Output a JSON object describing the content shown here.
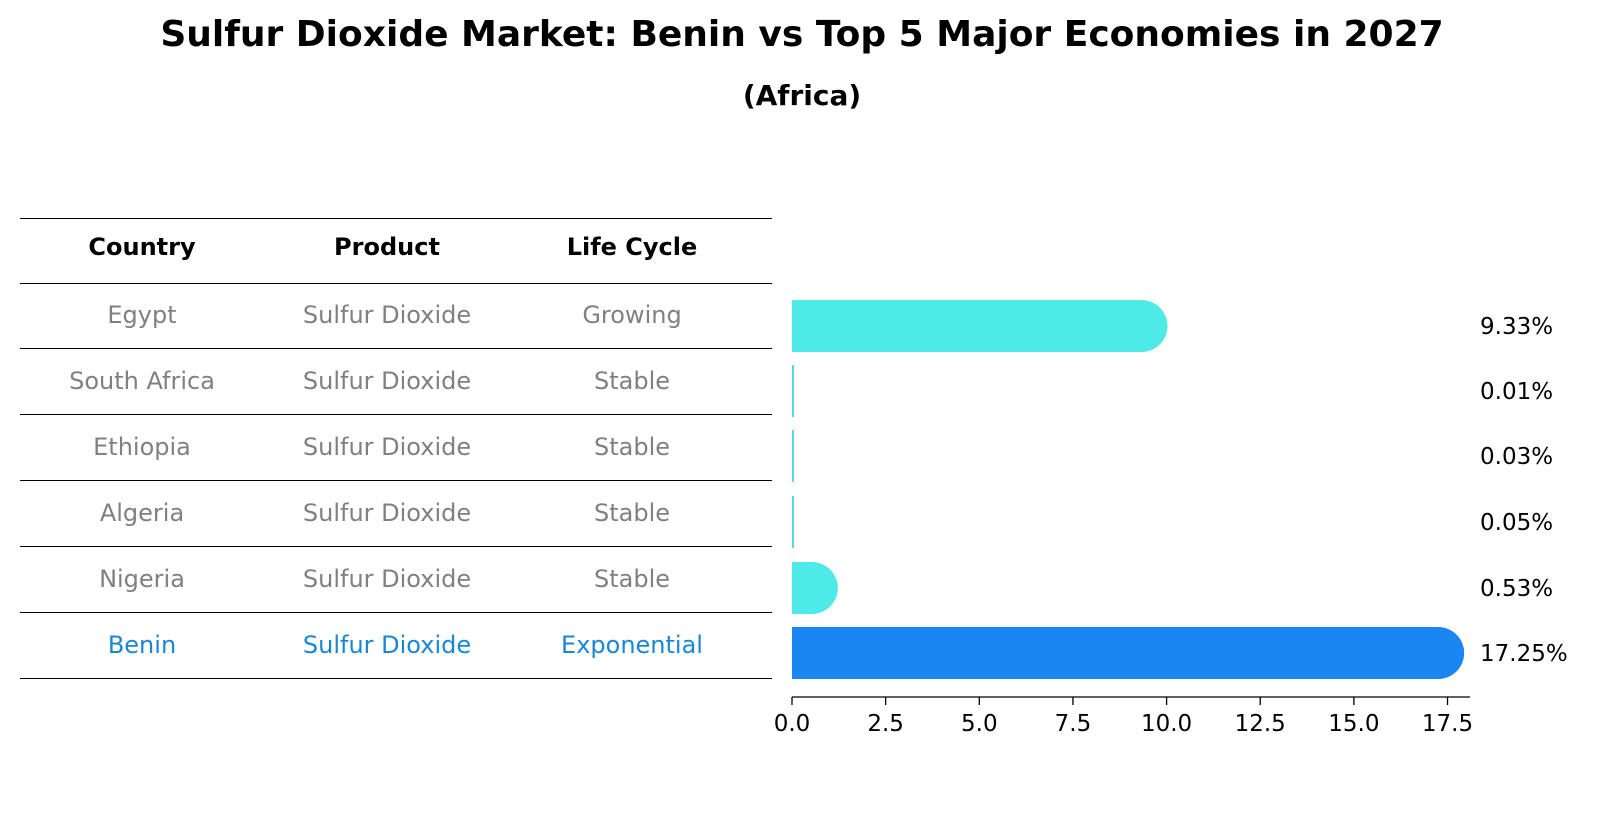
{
  "title": "Sulfur Dioxide Market: Benin vs Top 5 Major Economies in 2027",
  "subtitle": "(Africa)",
  "colors": {
    "highlight": "#1a86f2",
    "bar": "#4deae8",
    "bar_thin": "#5fd3e8",
    "muted_text": "#808080",
    "highlight_text": "#1a86d6"
  },
  "table": {
    "headers": [
      "Country",
      "Product",
      "Life Cycle"
    ],
    "rows": [
      {
        "country": "Egypt",
        "product": "Sulfur Dioxide",
        "life_cycle": "Growing",
        "highlight": false
      },
      {
        "country": "South Africa",
        "product": "Sulfur Dioxide",
        "life_cycle": "Stable",
        "highlight": false
      },
      {
        "country": "Ethiopia",
        "product": "Sulfur Dioxide",
        "life_cycle": "Stable",
        "highlight": false
      },
      {
        "country": "Algeria",
        "product": "Sulfur Dioxide",
        "life_cycle": "Stable",
        "highlight": false
      },
      {
        "country": "Nigeria",
        "product": "Sulfur Dioxide",
        "life_cycle": "Stable",
        "highlight": false
      },
      {
        "country": "Benin",
        "product": "Sulfur Dioxide",
        "life_cycle": "Exponential",
        "highlight": true
      }
    ]
  },
  "chart_data": {
    "type": "bar",
    "orientation": "horizontal",
    "categories": [
      "Egypt",
      "South Africa",
      "Ethiopia",
      "Algeria",
      "Nigeria",
      "Benin"
    ],
    "values": [
      9.33,
      0.01,
      0.03,
      0.05,
      0.53,
      17.25
    ],
    "value_labels": [
      "9.33%",
      "0.01%",
      "0.03%",
      "0.05%",
      "0.53%",
      "17.25%"
    ],
    "xlim": [
      0,
      18.1
    ],
    "xticks": [
      0.0,
      2.5,
      5.0,
      7.5,
      10.0,
      12.5,
      15.0,
      17.5
    ],
    "xtick_labels": [
      "0.0",
      "2.5",
      "5.0",
      "7.5",
      "10.0",
      "12.5",
      "15.0",
      "17.5"
    ],
    "highlight_index": 5,
    "grid": false
  }
}
